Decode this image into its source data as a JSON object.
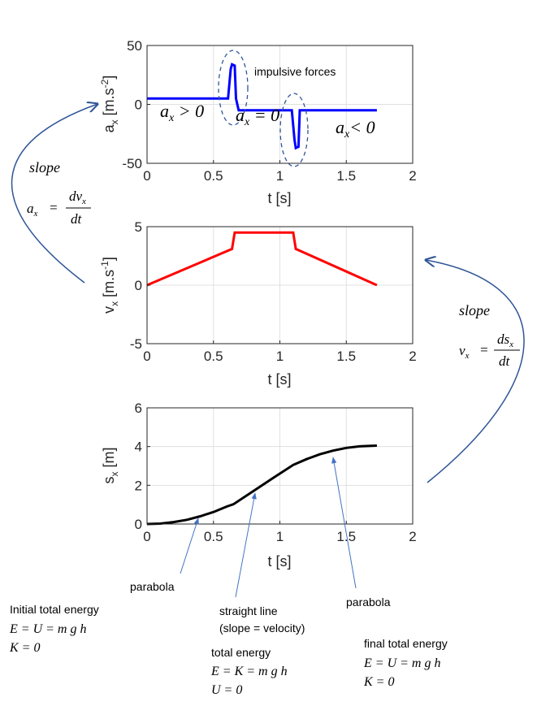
{
  "chart_data": [
    {
      "type": "line",
      "name_id": "acceleration",
      "xlabel": "t  [s]",
      "ylabel_main": "a",
      "ylabel_sub": "x",
      "ylabel_unit": "[m.s",
      "ylabel_sup": "-2",
      "ylabel_close": "]",
      "xlim": [
        0,
        2
      ],
      "ylim": [
        -50,
        50
      ],
      "xticks": [
        "0",
        "0.5",
        "1",
        "1.5",
        "2"
      ],
      "yticks": [
        "-50",
        "0",
        "50"
      ],
      "grid": true,
      "color": "#0000ff",
      "series": [
        {
          "x": [
            0,
            0.61,
            0.63,
            0.64,
            0.66,
            0.67,
            0.69,
            1.09,
            1.11,
            1.12,
            1.14,
            1.15,
            1.17,
            1.73
          ],
          "y": [
            5,
            5,
            30,
            34,
            33,
            5,
            -5,
            -5,
            -30,
            -37,
            -36,
            -5,
            -5,
            -5
          ]
        }
      ],
      "annotations": {
        "impulsive": "impulsive forces",
        "ax_pos_a": "a",
        "ax_pos_sub": "x",
        "ax_pos_rel": " > 0",
        "ax_zero_a": "a",
        "ax_zero_sub": "x",
        "ax_zero_rel": " = 0",
        "ax_neg_a": "a",
        "ax_neg_sub": "x",
        "ax_neg_rel": "< 0"
      }
    },
    {
      "type": "line",
      "name_id": "velocity",
      "xlabel": "t  [s]",
      "ylabel_main": "v",
      "ylabel_sub": "x",
      "ylabel_unit": "[m.s",
      "ylabel_sup": "-1",
      "ylabel_close": "]",
      "xlim": [
        0,
        2
      ],
      "ylim": [
        -5,
        5
      ],
      "xticks": [
        "0",
        "0.5",
        "1",
        "1.5",
        "2"
      ],
      "yticks": [
        "-5",
        "0",
        "5"
      ],
      "grid": true,
      "color": "#ff0000",
      "series": [
        {
          "x": [
            0,
            0.64,
            0.66,
            1.1,
            1.12,
            1.73
          ],
          "y": [
            0,
            3.1,
            4.5,
            4.5,
            3.1,
            0
          ]
        }
      ]
    },
    {
      "type": "line",
      "name_id": "displacement",
      "xlabel": "t  [s]",
      "ylabel_main": "s",
      "ylabel_sub": "x",
      "ylabel_unit": "[m]",
      "ylabel_sup": "",
      "ylabel_close": "",
      "xlim": [
        0,
        2
      ],
      "ylim": [
        0,
        6
      ],
      "xticks": [
        "0",
        "0.5",
        "1",
        "1.5",
        "2"
      ],
      "yticks": [
        "0",
        "2",
        "4",
        "6"
      ],
      "grid": true,
      "color": "#000000",
      "series": [
        {
          "x": [
            0,
            0.1,
            0.2,
            0.3,
            0.4,
            0.5,
            0.6,
            0.65,
            0.8,
            0.95,
            1.1,
            1.2,
            1.3,
            1.4,
            1.5,
            1.6,
            1.73
          ],
          "y": [
            0,
            0.02,
            0.1,
            0.22,
            0.4,
            0.62,
            0.9,
            1.02,
            1.7,
            2.38,
            3.05,
            3.35,
            3.6,
            3.79,
            3.93,
            4.01,
            4.05
          ]
        }
      ]
    }
  ],
  "left_slope": {
    "word": "slope",
    "lhs": "a",
    "lhs_sub": "x",
    "eq": "=",
    "num": "dv",
    "num_sub": "x",
    "den": "dt"
  },
  "right_slope": {
    "word": "slope",
    "lhs": "v",
    "lhs_sub": "x",
    "eq": "=",
    "num": "ds",
    "num_sub": "x",
    "den": "dt"
  },
  "notes": {
    "parabola_1": "parabola",
    "straight_line": "straight line",
    "straight_line_2": "(slope = velocity)",
    "parabola_2": "parabola"
  },
  "energy": {
    "initial_title": "Initial total energy",
    "initial_eq1": "E = U = m g h",
    "initial_eq2": "K = 0",
    "total_title": "total energy",
    "total_eq1": "E = K = m g h",
    "total_eq2": "U = 0",
    "final_title": "final total energy",
    "final_eq1": "E = U = m g h",
    "final_eq2": "K = 0"
  },
  "colors": {
    "arrow": "#2f5597",
    "dashed": "#2f5597",
    "note_arrow": "#4472c4"
  }
}
